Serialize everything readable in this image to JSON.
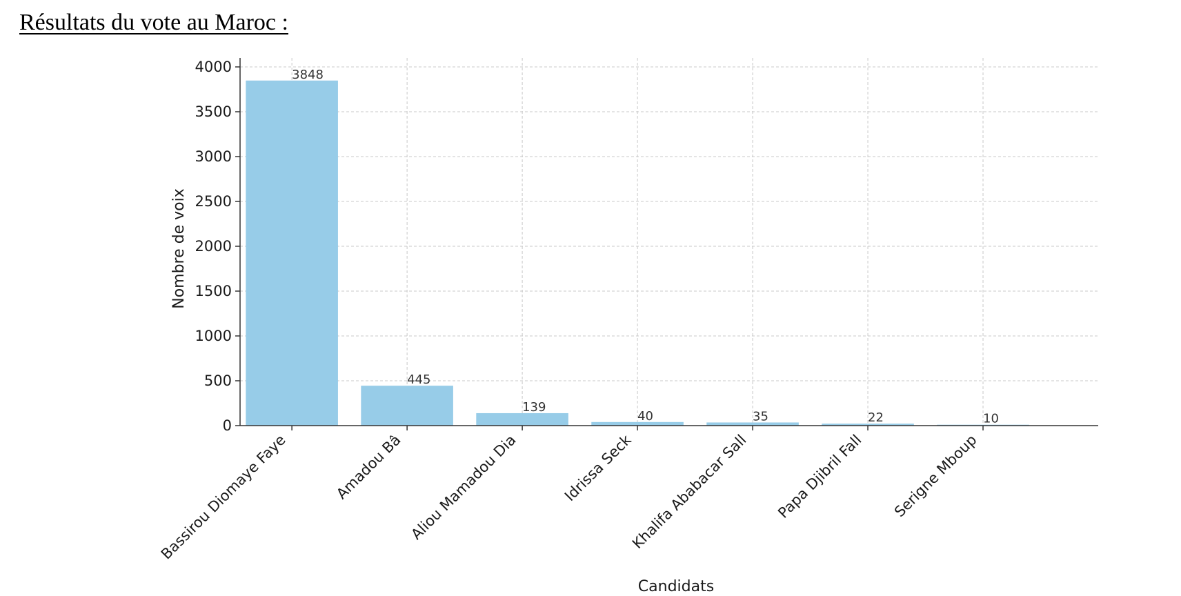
{
  "document": {
    "heading": "Résultats du vote au Maroc :"
  },
  "chart_data": {
    "type": "bar",
    "title": "",
    "xlabel": "Candidats",
    "ylabel": "Nombre de voix",
    "categories": [
      "Bassirou Diomaye Faye",
      "Amadou Bâ",
      "Aliou Mamadou Dia",
      "Idrissa Seck",
      "Khalifa Ababacar Sall",
      "Papa Djibril Fall",
      "Serigne Mboup"
    ],
    "values": [
      3848,
      445,
      139,
      40,
      35,
      22,
      10
    ],
    "ylim": [
      0,
      4000
    ],
    "yticks": [
      0,
      500,
      1000,
      1500,
      2000,
      2500,
      3000,
      3500,
      4000
    ],
    "grid": true,
    "legend": "none",
    "colors": {
      "bar": "#97CCE8",
      "grid": "#c8c8c8",
      "axis": "#333333"
    }
  }
}
